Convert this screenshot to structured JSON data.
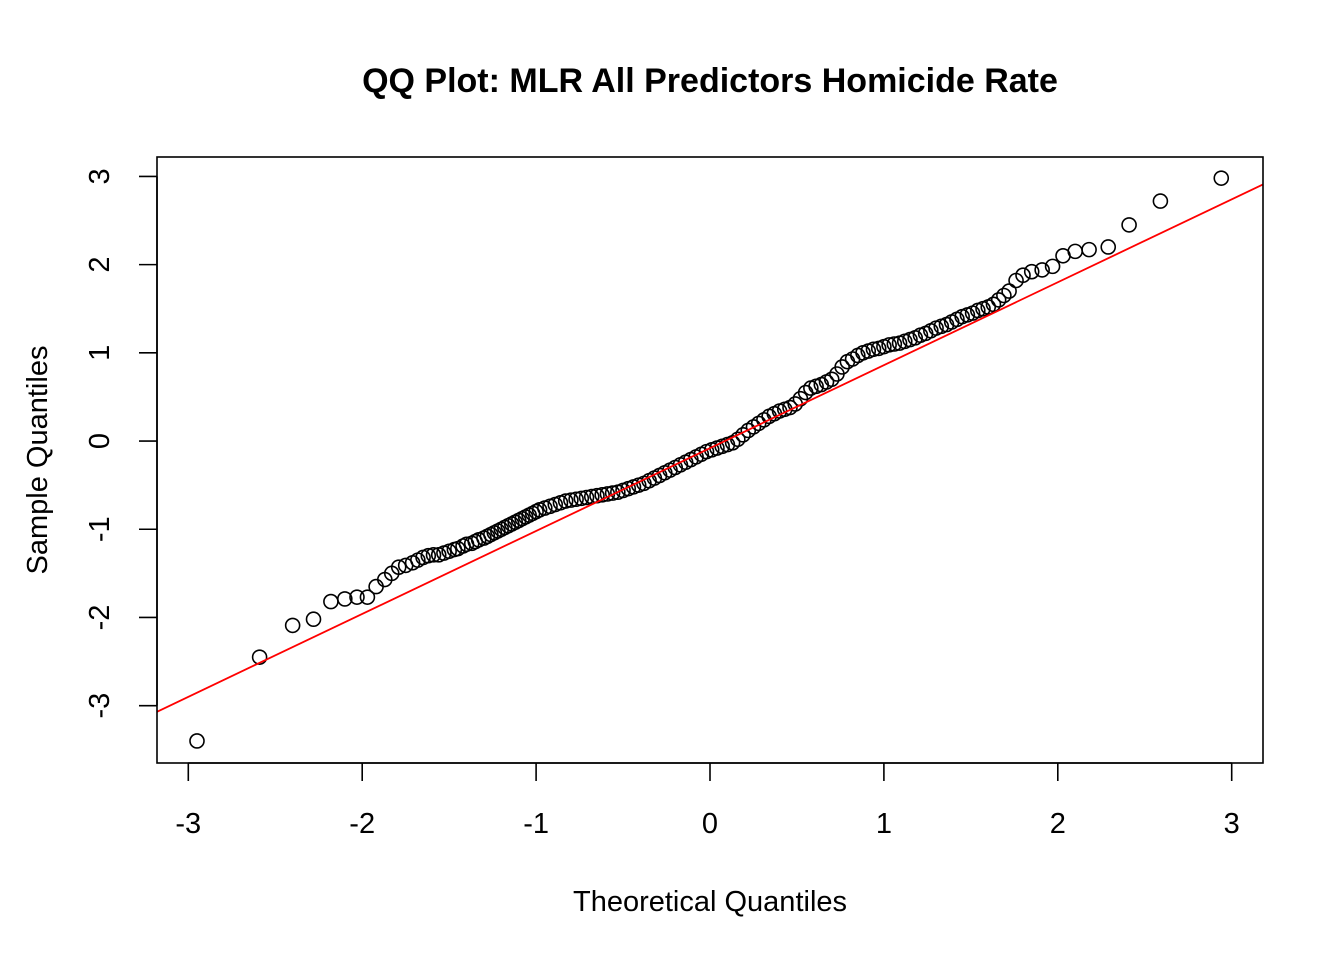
{
  "chart_data": {
    "type": "scatter",
    "title": "QQ Plot: MLR All Predictors Homicide Rate",
    "xlabel": "Theoretical Quantiles",
    "ylabel": "Sample Quantiles",
    "xlim": [
      -3.18,
      3.18
    ],
    "ylim": [
      -3.65,
      3.22
    ],
    "x_ticks": [
      -3,
      -2,
      -1,
      0,
      1,
      2,
      3
    ],
    "y_ticks": [
      -3,
      -2,
      -1,
      0,
      1,
      2,
      3
    ],
    "x_tick_labels": [
      "-3",
      "-2",
      "-1",
      "0",
      "1",
      "2",
      "3"
    ],
    "y_tick_labels": [
      "-3",
      "-2",
      "-1",
      "0",
      "1",
      "2",
      "3"
    ],
    "grid": false,
    "point_color": "#000000",
    "line_color": "#ff0000",
    "reference_line": {
      "intercept": -0.08,
      "slope": 0.94
    },
    "series": [
      {
        "values_x": [
          -2.95,
          -2.59,
          -2.4,
          -2.28,
          -2.18,
          -2.1,
          -2.03,
          -1.97,
          -1.92,
          -1.87,
          -1.83,
          -1.79,
          -1.75,
          -1.71,
          -1.68,
          -1.65,
          -1.62,
          -1.59,
          -1.56,
          -1.53,
          -1.5,
          -1.47,
          -1.45,
          -1.42,
          -1.4,
          -1.37,
          -1.35,
          -1.33,
          -1.3,
          -1.28,
          -1.26,
          -1.24,
          -1.22,
          -1.2,
          -1.18,
          -1.16,
          -1.14,
          -1.12,
          -1.1,
          -1.08,
          -1.06,
          -1.04,
          -1.02,
          -1.0,
          -0.98,
          -0.95,
          -0.92,
          -0.89,
          -0.86,
          -0.83,
          -0.8,
          -0.77,
          -0.74,
          -0.71,
          -0.68,
          -0.65,
          -0.62,
          -0.59,
          -0.56,
          -0.53,
          -0.5,
          -0.47,
          -0.44,
          -0.41,
          -0.38,
          -0.35,
          -0.32,
          -0.29,
          -0.26,
          -0.23,
          -0.2,
          -0.17,
          -0.14,
          -0.11,
          -0.08,
          -0.05,
          -0.02,
          0.01,
          0.04,
          0.07,
          0.1,
          0.13,
          0.16,
          0.19,
          0.22,
          0.25,
          0.28,
          0.31,
          0.34,
          0.37,
          0.4,
          0.43,
          0.46,
          0.49,
          0.52,
          0.55,
          0.58,
          0.61,
          0.64,
          0.67,
          0.7,
          0.73,
          0.76,
          0.79,
          0.82,
          0.85,
          0.88,
          0.91,
          0.94,
          0.97,
          1.0,
          1.03,
          1.06,
          1.09,
          1.12,
          1.15,
          1.18,
          1.21,
          1.24,
          1.27,
          1.3,
          1.33,
          1.36,
          1.39,
          1.42,
          1.45,
          1.48,
          1.51,
          1.54,
          1.57,
          1.6,
          1.63,
          1.66,
          1.69,
          1.72,
          1.76,
          1.8,
          1.85,
          1.91,
          1.97,
          2.03,
          2.1,
          2.18,
          2.29,
          2.41,
          2.59,
          2.94
        ],
        "values_y": [
          -3.4,
          -2.45,
          -2.09,
          -2.02,
          -1.82,
          -1.79,
          -1.77,
          -1.77,
          -1.65,
          -1.57,
          -1.5,
          -1.43,
          -1.41,
          -1.38,
          -1.35,
          -1.32,
          -1.3,
          -1.29,
          -1.29,
          -1.27,
          -1.25,
          -1.23,
          -1.22,
          -1.19,
          -1.17,
          -1.16,
          -1.14,
          -1.12,
          -1.1,
          -1.08,
          -1.06,
          -1.04,
          -1.02,
          -1.0,
          -0.98,
          -0.96,
          -0.94,
          -0.92,
          -0.9,
          -0.88,
          -0.86,
          -0.84,
          -0.82,
          -0.8,
          -0.78,
          -0.76,
          -0.74,
          -0.72,
          -0.7,
          -0.68,
          -0.67,
          -0.66,
          -0.65,
          -0.64,
          -0.63,
          -0.62,
          -0.61,
          -0.6,
          -0.59,
          -0.58,
          -0.56,
          -0.54,
          -0.52,
          -0.5,
          -0.48,
          -0.45,
          -0.42,
          -0.39,
          -0.36,
          -0.33,
          -0.3,
          -0.27,
          -0.24,
          -0.21,
          -0.18,
          -0.15,
          -0.12,
          -0.1,
          -0.08,
          -0.06,
          -0.04,
          -0.02,
          0.02,
          0.07,
          0.12,
          0.16,
          0.2,
          0.24,
          0.28,
          0.31,
          0.34,
          0.36,
          0.38,
          0.42,
          0.48,
          0.55,
          0.6,
          0.62,
          0.64,
          0.67,
          0.7,
          0.76,
          0.84,
          0.9,
          0.93,
          0.97,
          1.0,
          1.02,
          1.04,
          1.05,
          1.07,
          1.09,
          1.1,
          1.11,
          1.13,
          1.15,
          1.17,
          1.2,
          1.22,
          1.25,
          1.28,
          1.3,
          1.32,
          1.35,
          1.38,
          1.41,
          1.43,
          1.45,
          1.48,
          1.5,
          1.52,
          1.55,
          1.6,
          1.65,
          1.7,
          1.82,
          1.88,
          1.92,
          1.94,
          1.98,
          2.1,
          2.15,
          2.17,
          2.2,
          2.45,
          2.72,
          2.98
        ]
      }
    ]
  }
}
